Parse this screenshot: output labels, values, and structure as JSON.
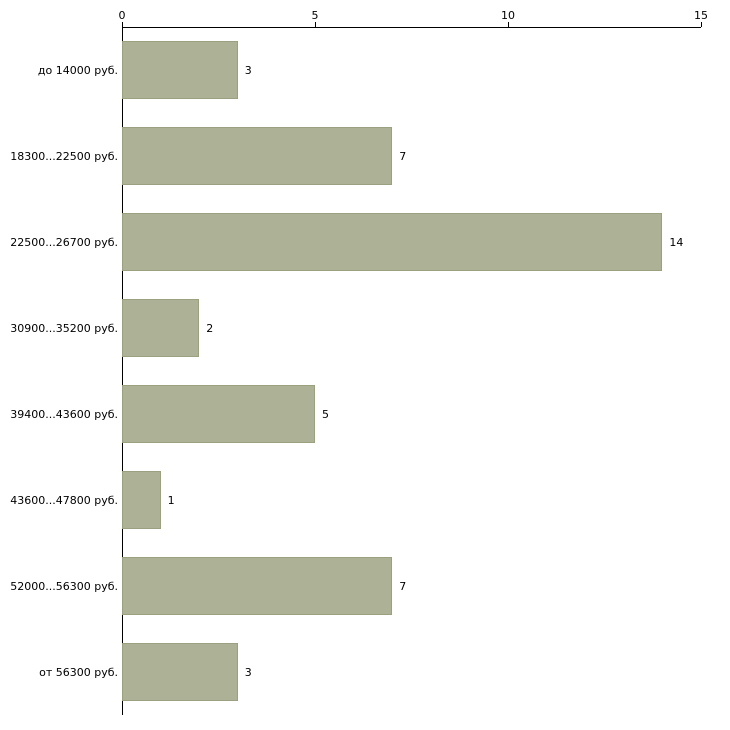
{
  "chart_data": {
    "type": "bar",
    "orientation": "horizontal",
    "title": "",
    "xlabel": "",
    "ylabel": "",
    "categories": [
      "до 14000 руб.",
      "18300...22500 руб.",
      "22500...26700 руб.",
      "30900...35200 руб.",
      "39400...43600 руб.",
      "43600...47800 руб.",
      "52000...56300 руб.",
      "от 56300 руб."
    ],
    "values": [
      3,
      7,
      14,
      2,
      5,
      1,
      7,
      3
    ],
    "value_labels": [
      "3",
      "7",
      "14",
      "2",
      "5",
      "1",
      "7",
      "3"
    ],
    "xlim": [
      0,
      15
    ],
    "x_ticks": [
      0,
      5,
      10,
      15
    ],
    "axis_position": "top",
    "grid": false,
    "legend": false,
    "colors": {
      "bar_fill": "#adb296",
      "bar_border": "#99a180",
      "axis": "#000000",
      "text": "#000000",
      "background": "#ffffff"
    }
  }
}
